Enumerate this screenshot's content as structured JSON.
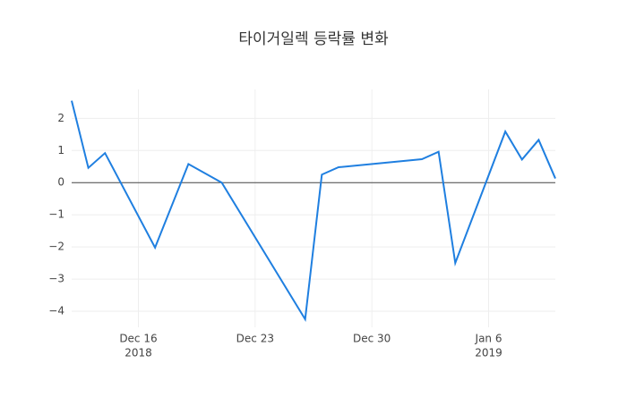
{
  "chart_data": {
    "type": "line",
    "title": "타이거일렉 등락률 변화",
    "x": [
      "2018-12-12",
      "2018-12-13",
      "2018-12-14",
      "2018-12-17",
      "2018-12-19",
      "2018-12-21",
      "2018-12-26",
      "2018-12-27",
      "2018-12-28",
      "2019-01-02",
      "2019-01-03",
      "2019-01-04",
      "2019-01-07",
      "2019-01-08",
      "2019-01-09",
      "2019-01-10"
    ],
    "series": [
      {
        "color": "#1f7fe0",
        "values": [
          2.55,
          0.46,
          0.92,
          -2.02,
          0.58,
          0.0,
          -4.25,
          0.25,
          0.48,
          0.73,
          0.96,
          -2.5,
          1.59,
          0.72,
          1.33,
          0.13
        ]
      }
    ],
    "xlim": [
      "2018-12-12",
      "2019-01-10"
    ],
    "xticks": [
      {
        "value": "2018-12-16",
        "label": "Dec 16",
        "year": "2018"
      },
      {
        "value": "2018-12-23",
        "label": "Dec 23"
      },
      {
        "value": "2018-12-30",
        "label": "Dec 30"
      },
      {
        "value": "2019-01-06",
        "label": "Jan 6",
        "year": "2019"
      }
    ],
    "ylim": [
      -4.5,
      2.9
    ],
    "yticks": [
      {
        "value": -4,
        "label": "−4"
      },
      {
        "value": -3,
        "label": "−3"
      },
      {
        "value": -2,
        "label": "−2"
      },
      {
        "value": -1,
        "label": "−1"
      },
      0,
      1,
      2
    ],
    "grid": true,
    "zeroline": true
  }
}
